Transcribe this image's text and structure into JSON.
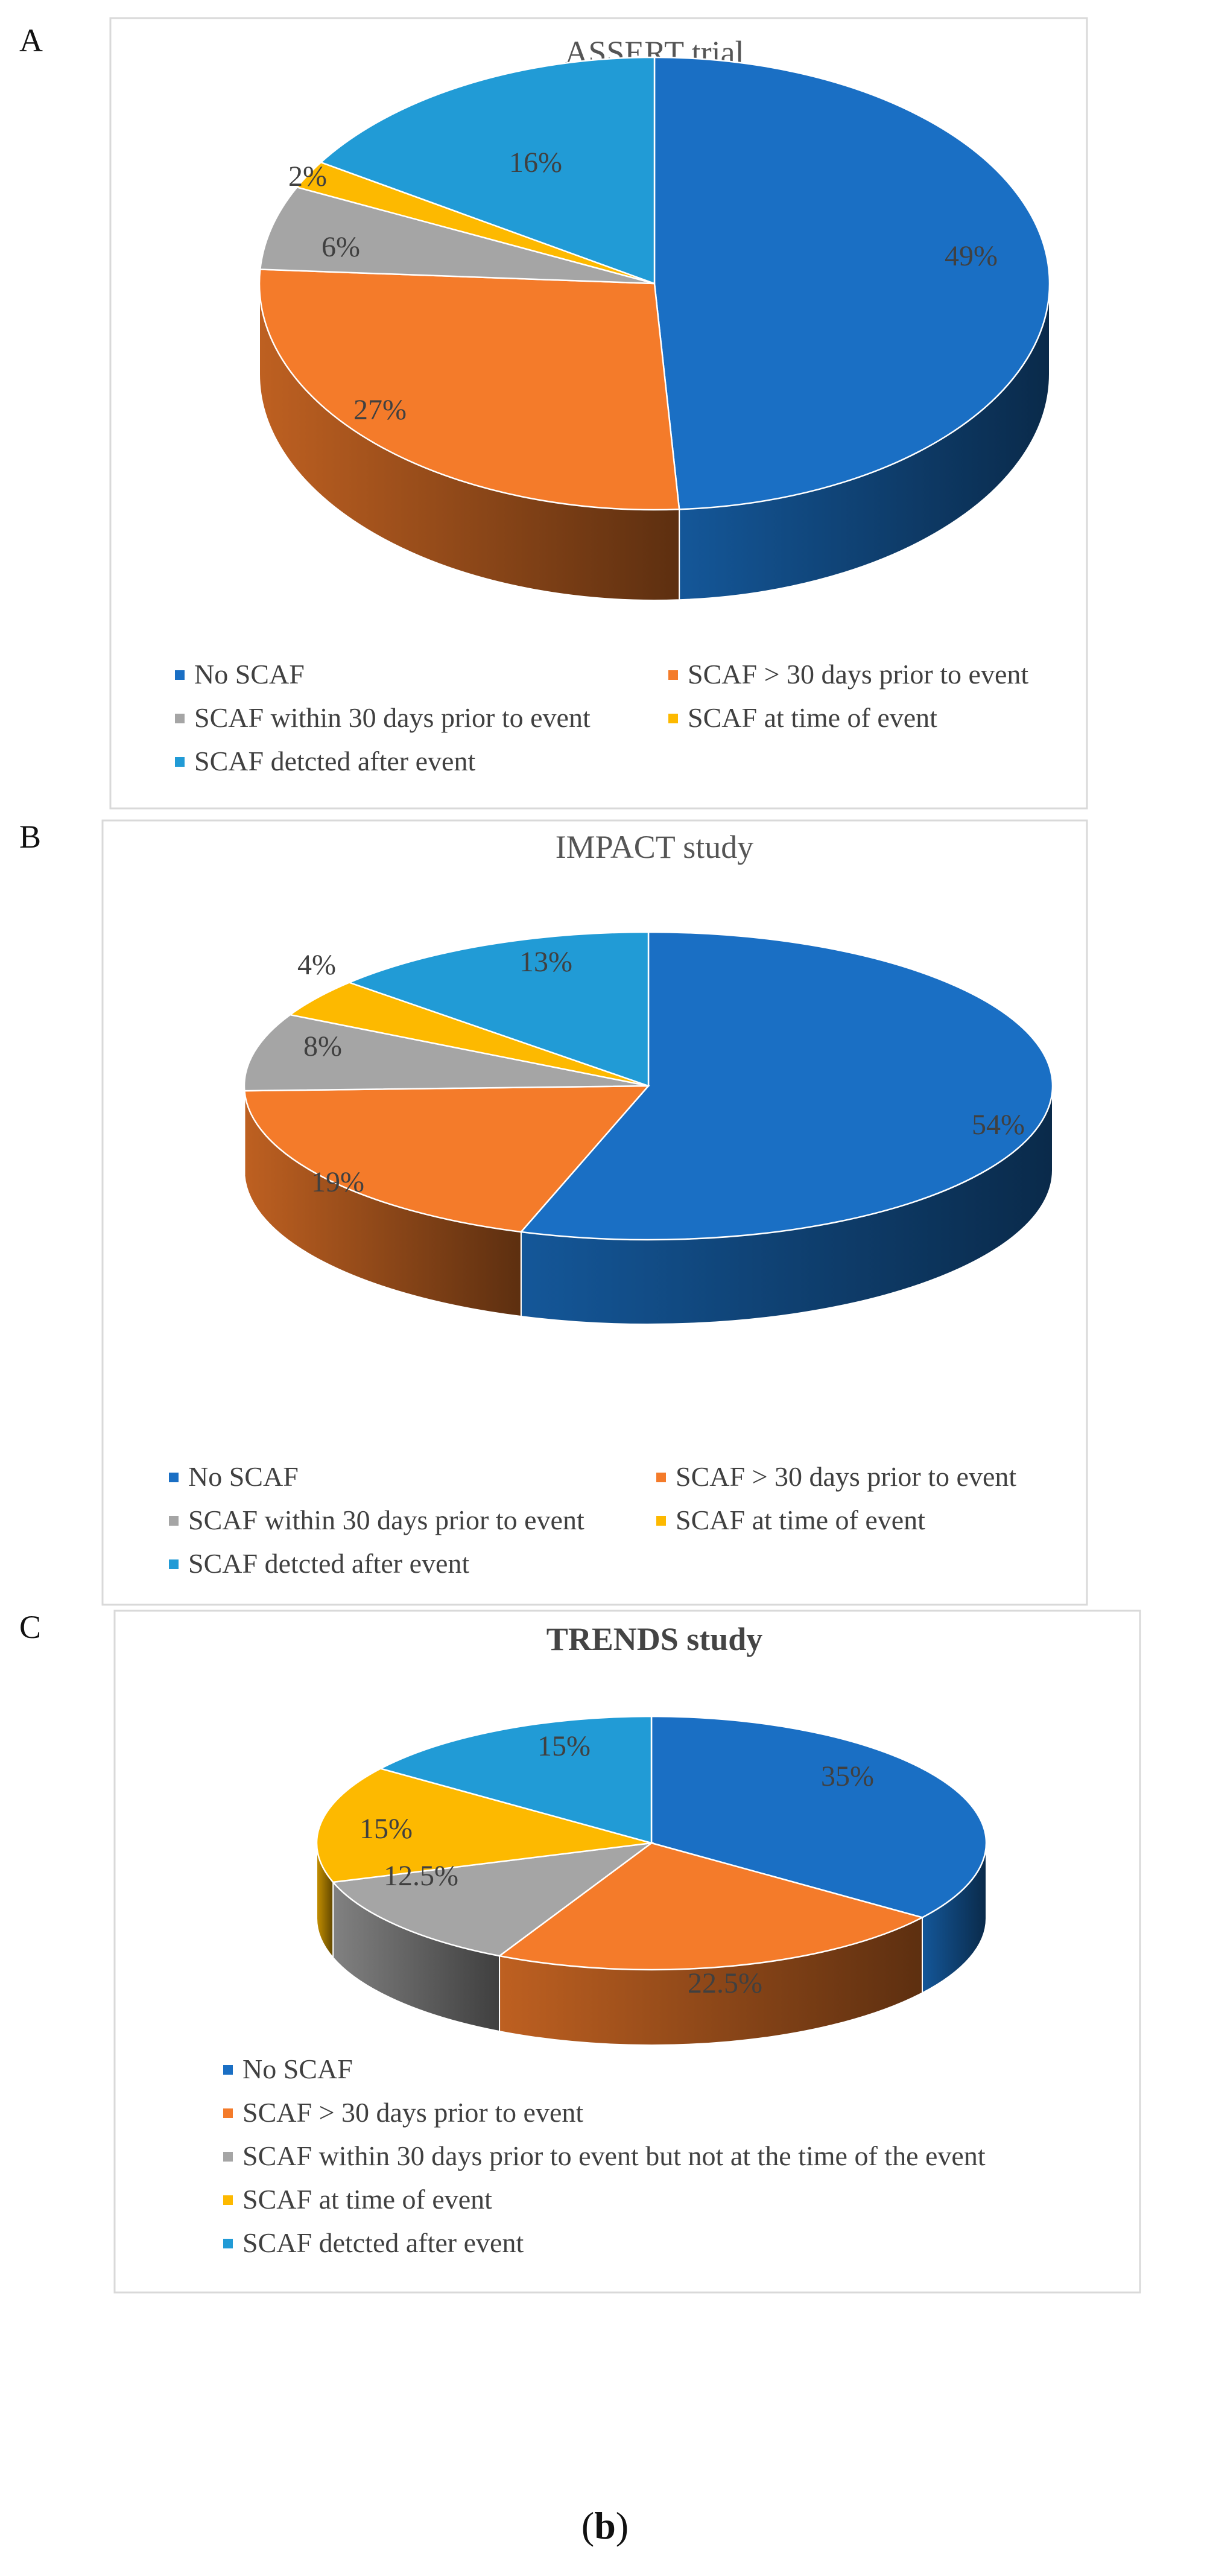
{
  "caption": {
    "open": "(",
    "letter": "b",
    "close": ")"
  },
  "colors": {
    "no_scaf": "#1a6fc4",
    "scaf_30": "#f47b2a",
    "scaf_within": "#a5a5a5",
    "scaf_time": "#fdb900",
    "scaf_after": "#219bd6"
  },
  "chart_data": [
    {
      "panel": "A",
      "type": "pie",
      "title": "ASSERT trial",
      "title_bold": false,
      "style": "3d",
      "categories": [
        "No SCAF",
        "SCAF > 30 days prior to event",
        "SCAF within 30 days prior to event",
        "SCAF at time of event",
        "SCAF detcted after event"
      ],
      "values": [
        49,
        27,
        6,
        2,
        16
      ],
      "labels": [
        "49%",
        "27%",
        "6%",
        "2%",
        "16%"
      ],
      "legend_layout": "two-column",
      "legend_position": "bottom"
    },
    {
      "panel": "B",
      "type": "pie",
      "title": "IMPACT study",
      "title_bold": false,
      "style": "3d",
      "categories": [
        "No SCAF",
        "SCAF > 30 days prior to event",
        "SCAF within 30 days prior to event",
        "SCAF at time of event",
        "SCAF detcted after event"
      ],
      "values": [
        54,
        19,
        8,
        4,
        13
      ],
      "labels": [
        "54%",
        "19%",
        "8%",
        "4%",
        "13%"
      ],
      "legend_layout": "two-column",
      "legend_position": "bottom"
    },
    {
      "panel": "C",
      "type": "pie",
      "title": "TRENDS study",
      "title_bold": true,
      "style": "3d",
      "categories": [
        "No SCAF",
        "SCAF > 30 days prior to event",
        "SCAF within 30 days prior to event but not at the time of the event",
        "SCAF at time of event",
        "SCAF detcted after event"
      ],
      "values": [
        35,
        22.5,
        12.5,
        15,
        15
      ],
      "labels": [
        "35%",
        "22.5%",
        "12.5%",
        "15%",
        "15%"
      ],
      "legend_layout": "one-column",
      "legend_position": "bottom"
    }
  ]
}
